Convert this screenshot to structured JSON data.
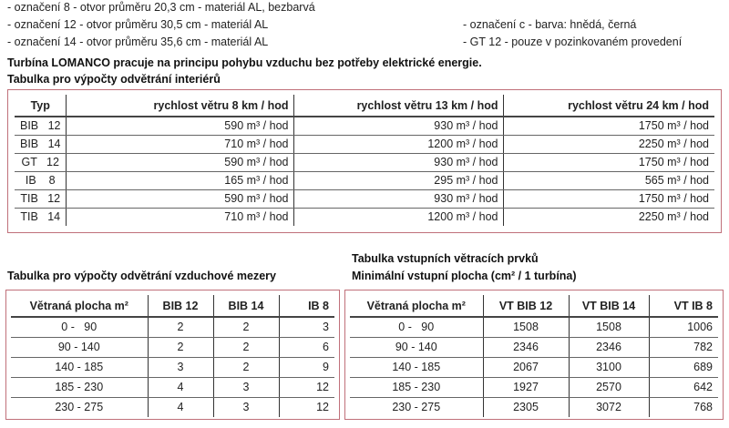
{
  "notes_left": [
    "- označení   8 - otvor průměru 20,3 cm - materiál AL, bezbarvá",
    "- označení 12 - otvor průměru 30,5 cm - materiál AL",
    "- označení 14 - otvor průměru 35,6 cm - materiál AL"
  ],
  "notes_right": [
    "- označení c - barva: hnědá, černá",
    "- GT 12 - pouze v pozinkovaném provedení"
  ],
  "intro": "Turbína LOMANCO pracuje na principu pohybu vzduchu bez potřeby elektrické energie.",
  "table1": {
    "title": "Tabulka pro výpočty odvětrání interiérů",
    "headers": [
      "Typ",
      "rychlost větru 8 km / hod",
      "rychlost větru 13 km / hod",
      "rychlost větru 24 km / hod"
    ],
    "unit": "m³ / hod",
    "rows": [
      [
        "BIB   12",
        "590 m³ / hod",
        "930 m³ / hod",
        "1750 m³ / hod"
      ],
      [
        "BIB   14",
        "710 m³ / hod",
        "1200 m³ / hod",
        "2250 m³ / hod"
      ],
      [
        "GT   12",
        "590 m³ / hod",
        "930 m³ / hod",
        "1750 m³ / hod"
      ],
      [
        "IB    8",
        "165 m³ / hod",
        "295 m³ / hod",
        "565 m³ / hod"
      ],
      [
        "TIB   12",
        "590 m³ / hod",
        "930 m³ / hod",
        "1750 m³ / hod"
      ],
      [
        "TIB   14",
        "710 m³ / hod",
        "1200 m³ / hod",
        "2250 m³ / hod"
      ]
    ]
  },
  "table2": {
    "title": "Tabulka pro výpočty odvětrání vzduchové mezery",
    "headers": [
      "Větraná plocha m²",
      "BIB 12",
      "BIB 14",
      "IB 8"
    ],
    "rows": [
      [
        "0 -   90",
        "2",
        "2",
        "3"
      ],
      [
        "90 - 140",
        "2",
        "2",
        "6"
      ],
      [
        "140 - 185",
        "3",
        "2",
        "9"
      ],
      [
        "185 - 230",
        "4",
        "3",
        "12"
      ],
      [
        "230 - 275",
        "4",
        "3",
        "12"
      ]
    ]
  },
  "table3": {
    "title": "Tabulka vstupních větracích prvků",
    "subtitle": "Minimální vstupní plocha (cm² / 1 turbína)",
    "headers": [
      "Větraná plocha m²",
      "VT BIB 12",
      "VT BIB 14",
      "VT IB 8"
    ],
    "rows": [
      [
        "0 -   90",
        "1508",
        "1508",
        "1006"
      ],
      [
        "90 - 140",
        "2346",
        "2346",
        "782"
      ],
      [
        "140 - 185",
        "2067",
        "3100",
        "689"
      ],
      [
        "185 - 230",
        "1927",
        "2570",
        "642"
      ],
      [
        "230 - 275",
        "2305",
        "3072",
        "768"
      ]
    ]
  }
}
